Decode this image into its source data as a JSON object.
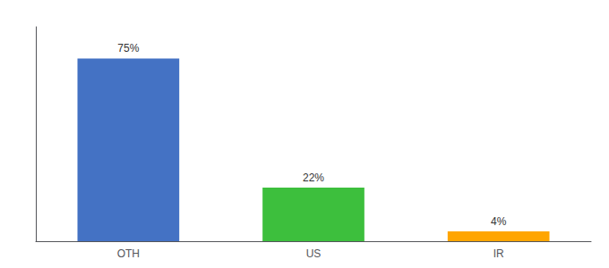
{
  "chart_data": {
    "type": "bar",
    "categories": [
      "OTH",
      "US",
      "IR"
    ],
    "values": [
      75,
      22,
      4
    ],
    "value_labels": [
      "75%",
      "22%",
      "4%"
    ],
    "colors": [
      "#4472C4",
      "#3DBF3D",
      "#FFA500"
    ],
    "ylim": [
      0,
      88
    ],
    "grid": false,
    "data_labels": true,
    "tick_labels": "x"
  }
}
